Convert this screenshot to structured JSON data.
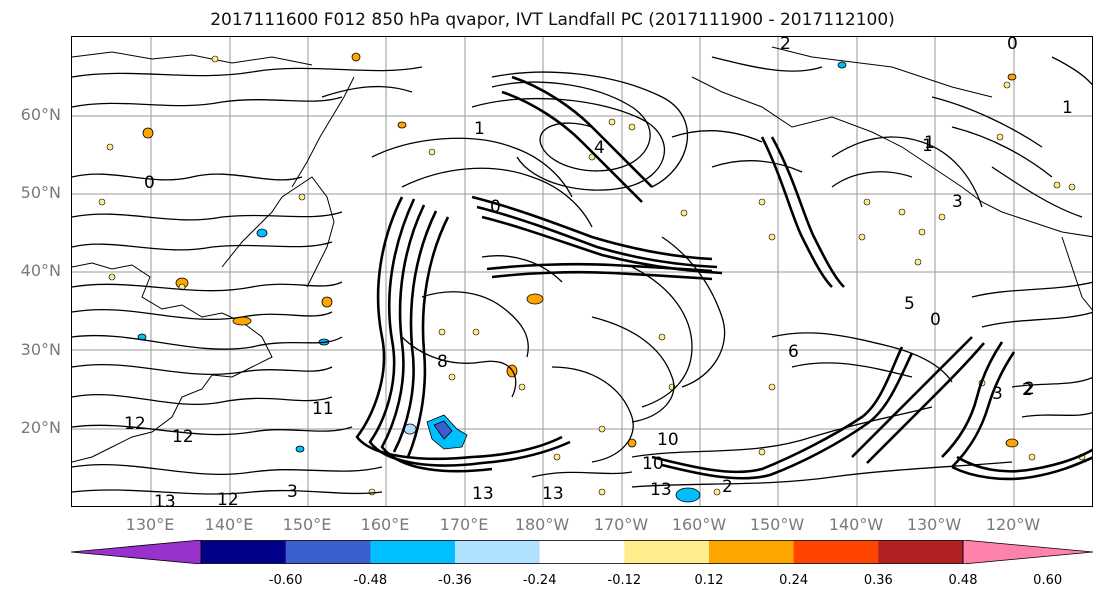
{
  "title": "2017111600 F012 850 hPa qvapor, IVT Landfall PC (2017111900 - 2017112100)",
  "lat_labels": [
    "60°N",
    "50°N",
    "40°N",
    "30°N",
    "20°N"
  ],
  "lon_labels": [
    "130°E",
    "140°E",
    "150°E",
    "160°E",
    "170°E",
    "180°W",
    "170°W",
    "160°W",
    "150°W",
    "140°W",
    "130°W",
    "120°W"
  ],
  "colorbar": {
    "colors": [
      "#9932cc",
      "#00008b",
      "#3a5fcd",
      "#00bfff",
      "#b0e2ff",
      "#ffffff",
      "#ffec8b",
      "#ffa500",
      "#ff4500",
      "#b22222",
      "#ff82ab"
    ],
    "tick_labels": [
      "-0.60",
      "-0.48",
      "-0.36",
      "-0.24",
      "-0.12",
      "0.12",
      "0.24",
      "0.36",
      "0.48",
      "0.60"
    ]
  },
  "contour_labels": [
    "2",
    "0",
    "1",
    "4",
    "0",
    "1",
    "0",
    "1",
    "5",
    "0",
    "6",
    "2",
    "8",
    "10",
    "12",
    "13",
    "11",
    "13",
    "12",
    "13",
    "12",
    "3",
    "13",
    "10",
    "2",
    "2",
    "3",
    "1",
    "3"
  ]
}
